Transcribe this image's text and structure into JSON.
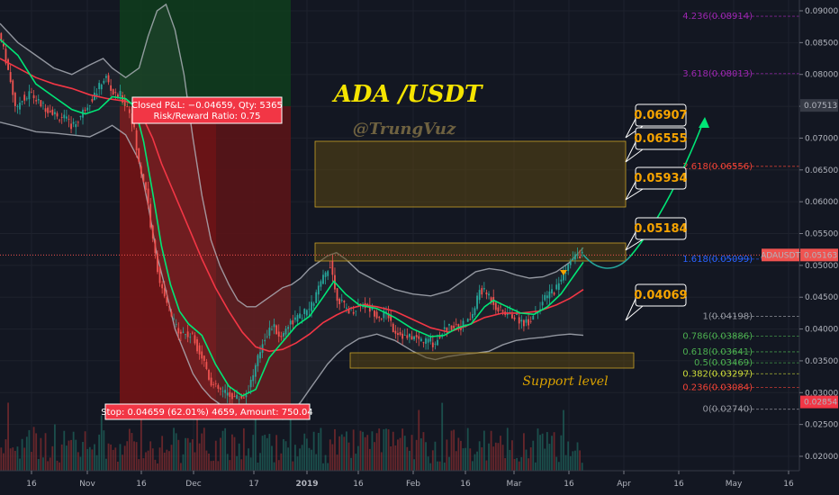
{
  "chart_data": {
    "type": "candlestick",
    "title": "ADA /USDT",
    "subtitle": "@TrungVuz",
    "symbol": "ADAUSDT",
    "last_price": "0.05163",
    "price_axis_highlight": "0.07513",
    "price_axis_low_label": "0.02854",
    "x_tick_labels": [
      "16",
      "Nov",
      "16",
      "Dec",
      "17",
      "2019",
      "16",
      "Feb",
      "16",
      "Mar",
      "16",
      "Apr",
      "16",
      "May",
      "16"
    ],
    "y_tick_labels": [
      "0.09000",
      "0.08500",
      "0.08000",
      "0.07500",
      "0.07000",
      "0.06500",
      "0.06000",
      "0.05500",
      "0.05000",
      "0.04500",
      "0.04000",
      "0.03500",
      "0.03000",
      "0.02500",
      "0.02000"
    ],
    "ylim": [
      0.0185,
      0.0915
    ],
    "fib_levels": [
      {
        "label": "4.236(0.08914)",
        "value": 0.08914,
        "color": "#9c27b0"
      },
      {
        "label": "3.618(0.08013)",
        "value": 0.08013,
        "color": "#9c27b0"
      },
      {
        "label": "2.618(0.06556)",
        "value": 0.06556,
        "color": "#f44336"
      },
      {
        "label": "1.618(0.05099)",
        "value": 0.05099,
        "color": "#2962ff"
      },
      {
        "label": "1(0.04198)",
        "value": 0.04198,
        "color": "#9598a1"
      },
      {
        "label": "0.786(0.03886)",
        "value": 0.03886,
        "color": "#4caf50"
      },
      {
        "label": "0.618(0.03641)",
        "value": 0.03641,
        "color": "#4caf50"
      },
      {
        "label": "0.5(0.03469)",
        "value": 0.03469,
        "color": "#4caf50"
      },
      {
        "label": "0.382(0.03297)",
        "value": 0.03297,
        "color": "#cddc39"
      },
      {
        "label": "0.236(0.03084)",
        "value": 0.03084,
        "color": "#f44336"
      },
      {
        "label": "0(0.02740)",
        "value": 0.0274,
        "color": "#9598a1"
      }
    ],
    "targets": [
      "0.06907",
      "0.06555",
      "0.05934",
      "0.05184",
      "0.04069"
    ],
    "trade_info": {
      "closed": "Closed P&L: −0.04659, Qty: 5365",
      "risk_reward": "Risk/Reward Ratio: 0.75",
      "stop": "Stop: 0.04659 (62.01%) 4659, Amount: 750.04"
    },
    "annotation": "Support level",
    "colors": {
      "up": "#26a69a",
      "down": "#ef5350",
      "ma_fast": "#00e676",
      "ma_slow": "#f23645",
      "band": "#b2b5be",
      "zone": "#d8a000"
    },
    "price_series": [
      [
        0,
        0.0865
      ],
      [
        5,
        0.084
      ],
      [
        10,
        0.081
      ],
      [
        15,
        0.0775
      ],
      [
        20,
        0.074
      ],
      [
        25,
        0.0765
      ],
      [
        30,
        0.076
      ],
      [
        35,
        0.0773
      ],
      [
        40,
        0.0762
      ],
      [
        45,
        0.0755
      ],
      [
        50,
        0.075
      ],
      [
        55,
        0.0745
      ],
      [
        60,
        0.0742
      ],
      [
        65,
        0.0732
      ],
      [
        70,
        0.0735
      ],
      [
        75,
        0.0728
      ],
      [
        80,
        0.072
      ],
      [
        85,
        0.0722
      ],
      [
        90,
        0.0732
      ],
      [
        95,
        0.0745
      ],
      [
        100,
        0.0755
      ],
      [
        105,
        0.0765
      ],
      [
        110,
        0.0775
      ],
      [
        115,
        0.079
      ],
      [
        120,
        0.0795
      ],
      [
        125,
        0.0775
      ],
      [
        130,
        0.0765
      ],
      [
        135,
        0.0768
      ],
      [
        140,
        0.0755
      ],
      [
        145,
        0.0745
      ],
      [
        150,
        0.072
      ],
      [
        155,
        0.0665
      ],
      [
        160,
        0.064
      ],
      [
        165,
        0.0615
      ],
      [
        170,
        0.055
      ],
      [
        175,
        0.051
      ],
      [
        180,
        0.047
      ],
      [
        185,
        0.0445
      ],
      [
        190,
        0.043
      ],
      [
        195,
        0.041
      ],
      [
        200,
        0.04
      ],
      [
        205,
        0.0395
      ],
      [
        210,
        0.039
      ],
      [
        215,
        0.039
      ],
      [
        220,
        0.0375
      ],
      [
        225,
        0.036
      ],
      [
        230,
        0.0345
      ],
      [
        235,
        0.032
      ],
      [
        240,
        0.031
      ],
      [
        245,
        0.0305
      ],
      [
        250,
        0.03
      ],
      [
        255,
        0.0298
      ],
      [
        260,
        0.0295
      ],
      [
        265,
        0.0292
      ],
      [
        270,
        0.0293
      ],
      [
        275,
        0.0295
      ],
      [
        280,
        0.0315
      ],
      [
        285,
        0.0335
      ],
      [
        290,
        0.036
      ],
      [
        295,
        0.0385
      ],
      [
        300,
        0.0395
      ],
      [
        305,
        0.0405
      ],
      [
        310,
        0.0395
      ],
      [
        315,
        0.0385
      ],
      [
        320,
        0.0405
      ],
      [
        325,
        0.041
      ],
      [
        330,
        0.0415
      ],
      [
        335,
        0.0418
      ],
      [
        340,
        0.0425
      ],
      [
        345,
        0.043
      ],
      [
        350,
        0.044
      ],
      [
        355,
        0.046
      ],
      [
        360,
        0.0475
      ],
      [
        365,
        0.049
      ],
      [
        370,
        0.0505
      ],
      [
        375,
        0.0455
      ],
      [
        380,
        0.0445
      ],
      [
        385,
        0.0435
      ],
      [
        390,
        0.043
      ],
      [
        395,
        0.043
      ],
      [
        400,
        0.0435
      ],
      [
        405,
        0.044
      ],
      [
        410,
        0.0435
      ],
      [
        415,
        0.043
      ],
      [
        420,
        0.0425
      ],
      [
        425,
        0.0418
      ],
      [
        430,
        0.0425
      ],
      [
        435,
        0.042
      ],
      [
        440,
        0.0398
      ],
      [
        445,
        0.0395
      ],
      [
        450,
        0.039
      ],
      [
        455,
        0.0385
      ],
      [
        460,
        0.0388
      ],
      [
        465,
        0.0385
      ],
      [
        470,
        0.0383
      ],
      [
        475,
        0.038
      ],
      [
        480,
        0.0385
      ],
      [
        485,
        0.0375
      ],
      [
        490,
        0.0388
      ],
      [
        495,
        0.0398
      ],
      [
        500,
        0.0402
      ],
      [
        505,
        0.0405
      ],
      [
        510,
        0.0408
      ],
      [
        515,
        0.0405
      ],
      [
        520,
        0.0408
      ],
      [
        525,
        0.0415
      ],
      [
        530,
        0.043
      ],
      [
        535,
        0.0462
      ],
      [
        540,
        0.0458
      ],
      [
        545,
        0.0455
      ],
      [
        550,
        0.0445
      ],
      [
        555,
        0.0432
      ],
      [
        560,
        0.0428
      ],
      [
        565,
        0.0425
      ],
      [
        570,
        0.0422
      ],
      [
        575,
        0.042
      ],
      [
        580,
        0.0415
      ],
      [
        585,
        0.041
      ],
      [
        590,
        0.0412
      ],
      [
        595,
        0.042
      ],
      [
        600,
        0.0432
      ],
      [
        605,
        0.044
      ],
      [
        610,
        0.045
      ],
      [
        615,
        0.0458
      ],
      [
        620,
        0.0462
      ],
      [
        625,
        0.0475
      ],
      [
        630,
        0.049
      ],
      [
        635,
        0.0502
      ],
      [
        640,
        0.051
      ],
      [
        645,
        0.0518
      ],
      [
        650,
        0.0516
      ]
    ],
    "upper_band": [
      [
        0,
        0.088
      ],
      [
        20,
        0.085
      ],
      [
        40,
        0.083
      ],
      [
        60,
        0.081
      ],
      [
        80,
        0.08
      ],
      [
        100,
        0.0815
      ],
      [
        115,
        0.0825
      ],
      [
        125,
        0.081
      ],
      [
        140,
        0.0795
      ],
      [
        155,
        0.081
      ],
      [
        165,
        0.086
      ],
      [
        175,
        0.09
      ],
      [
        185,
        0.091
      ],
      [
        195,
        0.087
      ],
      [
        205,
        0.08
      ],
      [
        215,
        0.07
      ],
      [
        225,
        0.061
      ],
      [
        235,
        0.054
      ],
      [
        245,
        0.05
      ],
      [
        255,
        0.047
      ],
      [
        265,
        0.0445
      ],
      [
        275,
        0.0435
      ],
      [
        285,
        0.0435
      ],
      [
        295,
        0.0445
      ],
      [
        305,
        0.0455
      ],
      [
        315,
        0.0465
      ],
      [
        325,
        0.047
      ],
      [
        335,
        0.048
      ],
      [
        345,
        0.0495
      ],
      [
        355,
        0.0505
      ],
      [
        365,
        0.0515
      ],
      [
        375,
        0.052
      ],
      [
        385,
        0.051
      ],
      [
        400,
        0.049
      ],
      [
        420,
        0.0475
      ],
      [
        440,
        0.0462
      ],
      [
        460,
        0.0455
      ],
      [
        480,
        0.0452
      ],
      [
        500,
        0.046
      ],
      [
        515,
        0.0475
      ],
      [
        530,
        0.049
      ],
      [
        545,
        0.0495
      ],
      [
        560,
        0.0492
      ],
      [
        575,
        0.0485
      ],
      [
        590,
        0.048
      ],
      [
        605,
        0.0482
      ],
      [
        620,
        0.049
      ],
      [
        635,
        0.0505
      ],
      [
        650,
        0.0528
      ]
    ],
    "lower_band": [
      [
        0,
        0.0725
      ],
      [
        20,
        0.0718
      ],
      [
        40,
        0.071
      ],
      [
        60,
        0.0708
      ],
      [
        80,
        0.0705
      ],
      [
        100,
        0.0702
      ],
      [
        115,
        0.0712
      ],
      [
        125,
        0.072
      ],
      [
        140,
        0.0705
      ],
      [
        155,
        0.0665
      ],
      [
        165,
        0.0595
      ],
      [
        175,
        0.0515
      ],
      [
        185,
        0.046
      ],
      [
        195,
        0.04
      ],
      [
        205,
        0.0365
      ],
      [
        215,
        0.033
      ],
      [
        225,
        0.0308
      ],
      [
        235,
        0.0292
      ],
      [
        245,
        0.0282
      ],
      [
        255,
        0.0275
      ],
      [
        265,
        0.027
      ],
      [
        275,
        0.0275
      ],
      [
        285,
        0.0278
      ],
      [
        295,
        0.0272
      ],
      [
        305,
        0.0262
      ],
      [
        315,
        0.0258
      ],
      [
        325,
        0.027
      ],
      [
        335,
        0.0285
      ],
      [
        345,
        0.0305
      ],
      [
        355,
        0.0325
      ],
      [
        365,
        0.0345
      ],
      [
        375,
        0.036
      ],
      [
        385,
        0.0372
      ],
      [
        400,
        0.0385
      ],
      [
        420,
        0.0392
      ],
      [
        440,
        0.0382
      ],
      [
        460,
        0.0365
      ],
      [
        475,
        0.0355
      ],
      [
        485,
        0.0352
      ],
      [
        500,
        0.0357
      ],
      [
        515,
        0.036
      ],
      [
        530,
        0.0362
      ],
      [
        545,
        0.0365
      ],
      [
        560,
        0.0375
      ],
      [
        575,
        0.0382
      ],
      [
        590,
        0.0385
      ],
      [
        605,
        0.0387
      ],
      [
        620,
        0.039
      ],
      [
        635,
        0.0392
      ],
      [
        650,
        0.039
      ]
    ],
    "ma_fast": [
      [
        0,
        0.0855
      ],
      [
        20,
        0.083
      ],
      [
        40,
        0.0785
      ],
      [
        60,
        0.0765
      ],
      [
        80,
        0.0745
      ],
      [
        95,
        0.0738
      ],
      [
        110,
        0.0745
      ],
      [
        125,
        0.0765
      ],
      [
        140,
        0.0762
      ],
      [
        150,
        0.075
      ],
      [
        160,
        0.0695
      ],
      [
        170,
        0.0615
      ],
      [
        180,
        0.053
      ],
      [
        190,
        0.047
      ],
      [
        200,
        0.0428
      ],
      [
        210,
        0.0408
      ],
      [
        225,
        0.039
      ],
      [
        240,
        0.0345
      ],
      [
        255,
        0.031
      ],
      [
        270,
        0.0295
      ],
      [
        285,
        0.0305
      ],
      [
        300,
        0.0355
      ],
      [
        315,
        0.038
      ],
      [
        330,
        0.0405
      ],
      [
        345,
        0.042
      ],
      [
        360,
        0.045
      ],
      [
        372,
        0.0475
      ],
      [
        385,
        0.0455
      ],
      [
        400,
        0.0438
      ],
      [
        420,
        0.0432
      ],
      [
        440,
        0.0418
      ],
      [
        460,
        0.04
      ],
      [
        480,
        0.0388
      ],
      [
        495,
        0.039
      ],
      [
        510,
        0.0402
      ],
      [
        525,
        0.0408
      ],
      [
        540,
        0.0435
      ],
      [
        550,
        0.0445
      ],
      [
        565,
        0.0435
      ],
      [
        580,
        0.0425
      ],
      [
        595,
        0.0423
      ],
      [
        610,
        0.0435
      ],
      [
        625,
        0.0455
      ],
      [
        640,
        0.0485
      ],
      [
        650,
        0.0505
      ]
    ],
    "ma_slow": [
      [
        0,
        0.0825
      ],
      [
        20,
        0.081
      ],
      [
        40,
        0.0795
      ],
      [
        60,
        0.0785
      ],
      [
        80,
        0.0778
      ],
      [
        100,
        0.0768
      ],
      [
        120,
        0.0762
      ],
      [
        140,
        0.0758
      ],
      [
        150,
        0.0752
      ],
      [
        160,
        0.073
      ],
      [
        170,
        0.07
      ],
      [
        180,
        0.066
      ],
      [
        195,
        0.061
      ],
      [
        210,
        0.056
      ],
      [
        225,
        0.051
      ],
      [
        240,
        0.0465
      ],
      [
        255,
        0.0428
      ],
      [
        270,
        0.0395
      ],
      [
        285,
        0.0372
      ],
      [
        300,
        0.0365
      ],
      [
        315,
        0.0368
      ],
      [
        330,
        0.0378
      ],
      [
        345,
        0.0392
      ],
      [
        360,
        0.041
      ],
      [
        375,
        0.0422
      ],
      [
        390,
        0.0432
      ],
      [
        405,
        0.0438
      ],
      [
        420,
        0.0435
      ],
      [
        440,
        0.0428
      ],
      [
        460,
        0.0415
      ],
      [
        480,
        0.0402
      ],
      [
        500,
        0.0395
      ],
      [
        520,
        0.0405
      ],
      [
        540,
        0.0418
      ],
      [
        560,
        0.0425
      ],
      [
        580,
        0.0425
      ],
      [
        600,
        0.0428
      ],
      [
        620,
        0.0438
      ],
      [
        635,
        0.0448
      ],
      [
        650,
        0.0462
      ]
    ]
  }
}
